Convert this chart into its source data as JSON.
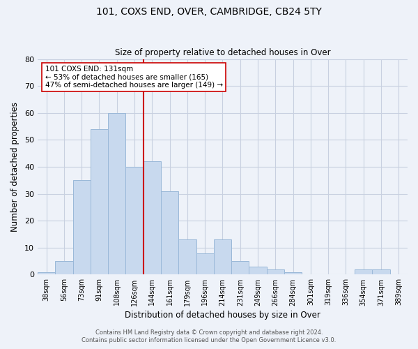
{
  "title": "101, COXS END, OVER, CAMBRIDGE, CB24 5TY",
  "subtitle": "Size of property relative to detached houses in Over",
  "xlabel": "Distribution of detached houses by size in Over",
  "ylabel": "Number of detached properties",
  "categories": [
    "38sqm",
    "56sqm",
    "73sqm",
    "91sqm",
    "108sqm",
    "126sqm",
    "144sqm",
    "161sqm",
    "179sqm",
    "196sqm",
    "214sqm",
    "231sqm",
    "249sqm",
    "266sqm",
    "284sqm",
    "301sqm",
    "319sqm",
    "336sqm",
    "354sqm",
    "371sqm",
    "389sqm"
  ],
  "values": [
    1,
    5,
    35,
    54,
    60,
    40,
    42,
    31,
    13,
    8,
    13,
    5,
    3,
    2,
    1,
    0,
    0,
    0,
    2,
    2,
    0
  ],
  "bar_color": "#c8d9ee",
  "bar_edge_color": "#9ab8d8",
  "vline_color": "#cc0000",
  "ylim": [
    0,
    80
  ],
  "yticks": [
    0,
    10,
    20,
    30,
    40,
    50,
    60,
    70,
    80
  ],
  "annotation_title": "101 COXS END: 131sqm",
  "annotation_line1": "← 53% of detached houses are smaller (165)",
  "annotation_line2": "47% of semi-detached houses are larger (149) →",
  "footer1": "Contains HM Land Registry data © Crown copyright and database right 2024.",
  "footer2": "Contains public sector information licensed under the Open Government Licence v3.0.",
  "bg_color": "#eef2f9",
  "grid_color": "#c8d0e0"
}
